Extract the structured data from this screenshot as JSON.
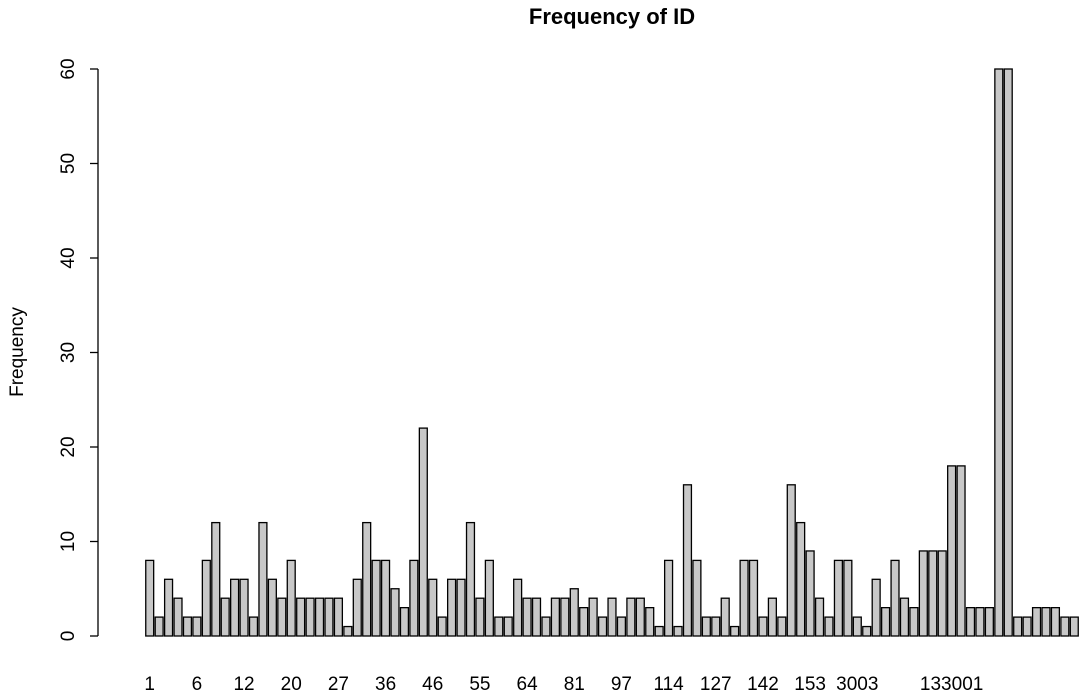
{
  "chart_data": {
    "type": "bar",
    "title": "Frequency of ID",
    "xlabel": "",
    "ylabel": "Frequency",
    "ylim": [
      0,
      60
    ],
    "yticks": [
      0,
      10,
      20,
      30,
      40,
      50,
      60
    ],
    "grid": false,
    "bar_color": "#c8c8c8",
    "tick_labels": [
      {
        "label": "1",
        "index": 0
      },
      {
        "label": "6",
        "index": 5
      },
      {
        "label": "12",
        "index": 10
      },
      {
        "label": "20",
        "index": 15
      },
      {
        "label": "27",
        "index": 20
      },
      {
        "label": "36",
        "index": 25
      },
      {
        "label": "46",
        "index": 30
      },
      {
        "label": "55",
        "index": 35
      },
      {
        "label": "64",
        "index": 40
      },
      {
        "label": "81",
        "index": 45
      },
      {
        "label": "97",
        "index": 50
      },
      {
        "label": "114",
        "index": 55
      },
      {
        "label": "127",
        "index": 60
      },
      {
        "label": "142",
        "index": 65
      },
      {
        "label": "153",
        "index": 70
      },
      {
        "label": "3003",
        "index": 75
      },
      {
        "label": "133001",
        "index": 85
      }
    ],
    "values": [
      8,
      2,
      6,
      4,
      2,
      2,
      8,
      12,
      4,
      6,
      6,
      2,
      12,
      6,
      4,
      8,
      4,
      4,
      4,
      4,
      4,
      1,
      6,
      12,
      8,
      8,
      5,
      3,
      8,
      22,
      6,
      2,
      6,
      6,
      12,
      4,
      8,
      2,
      2,
      6,
      4,
      4,
      2,
      4,
      4,
      5,
      3,
      4,
      2,
      4,
      2,
      4,
      4,
      3,
      1,
      8,
      1,
      16,
      8,
      2,
      2,
      4,
      1,
      8,
      8,
      2,
      4,
      2,
      16,
      12,
      9,
      4,
      2,
      8,
      8,
      2,
      1,
      6,
      3,
      8,
      4,
      3,
      9,
      9,
      9,
      18,
      18,
      3,
      3,
      3,
      60,
      60,
      2,
      2,
      3,
      3,
      3,
      2,
      2
    ]
  }
}
